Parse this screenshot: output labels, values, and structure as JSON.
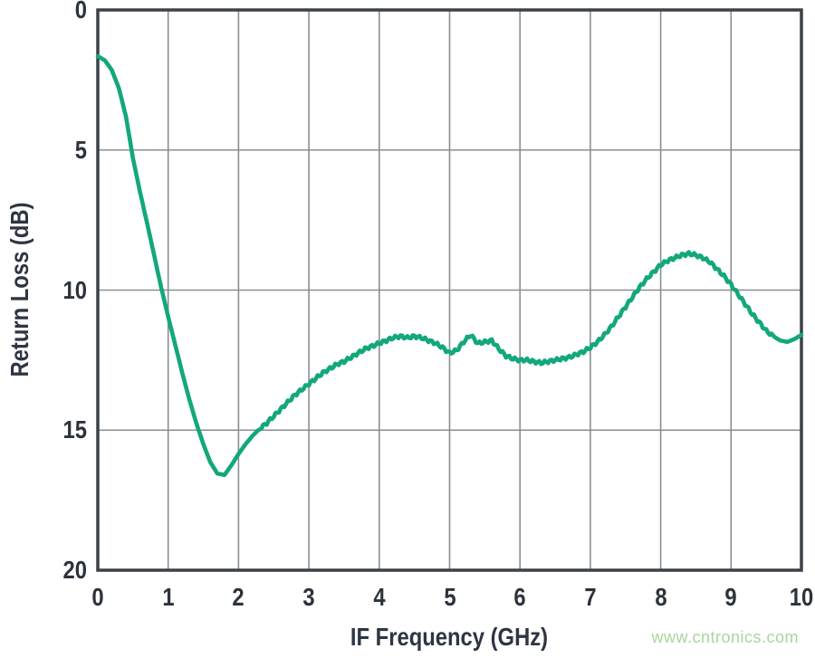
{
  "watermark": {
    "text": "www.cntronics.com",
    "color": "#a7d79d"
  },
  "style": {
    "background": "#ffffff",
    "grid_color": "#8b8e92",
    "frame_color": "#3c4149",
    "tick_text_color": "#2d333c",
    "title_text_color": "#2e3543",
    "curve_color": "#13a87c"
  },
  "chart_data": {
    "type": "line",
    "title": "",
    "xlabel": "IF Frequency (GHz)",
    "ylabel": "Return Loss (dB)",
    "xlim": [
      0,
      10
    ],
    "ylim": [
      0,
      20
    ],
    "y_axis_inverted_zero_at_top": true,
    "grid": true,
    "legend": "none",
    "xticks": [
      0,
      1,
      2,
      3,
      4,
      5,
      6,
      7,
      8,
      9,
      10
    ],
    "yticks": [
      0,
      5,
      10,
      15,
      20
    ],
    "series": [
      {
        "name": "Return Loss",
        "color": "#13a87c",
        "stroke_width": 4.6,
        "ripple": {
          "amplitude_db": 0.06,
          "wavelength_ghz": 0.085,
          "from_ghz": 2.3,
          "to_ghz": 9.6
        },
        "points": [
          [
            0,
            1.65
          ],
          [
            0.1,
            1.8
          ],
          [
            0.2,
            2.15
          ],
          [
            0.3,
            2.8
          ],
          [
            0.4,
            3.8
          ],
          [
            0.5,
            5.3
          ],
          [
            0.6,
            6.5
          ],
          [
            0.7,
            7.6
          ],
          [
            0.8,
            8.75
          ],
          [
            0.9,
            9.9
          ],
          [
            1,
            10.95
          ],
          [
            1.1,
            11.95
          ],
          [
            1.2,
            12.95
          ],
          [
            1.3,
            13.9
          ],
          [
            1.4,
            14.75
          ],
          [
            1.5,
            15.5
          ],
          [
            1.6,
            16.15
          ],
          [
            1.7,
            16.55
          ],
          [
            1.8,
            16.6
          ],
          [
            1.9,
            16.25
          ],
          [
            2,
            15.85
          ],
          [
            2.1,
            15.5
          ],
          [
            2.2,
            15.2
          ],
          [
            2.3,
            14.95
          ],
          [
            2.4,
            14.75
          ],
          [
            2.5,
            14.5
          ],
          [
            2.6,
            14.25
          ],
          [
            2.7,
            14
          ],
          [
            2.8,
            13.75
          ],
          [
            2.9,
            13.55
          ],
          [
            3,
            13.35
          ],
          [
            3.1,
            13.15
          ],
          [
            3.2,
            12.95
          ],
          [
            3.3,
            12.8
          ],
          [
            3.4,
            12.65
          ],
          [
            3.5,
            12.55
          ],
          [
            3.6,
            12.4
          ],
          [
            3.7,
            12.25
          ],
          [
            3.8,
            12.1
          ],
          [
            3.9,
            12
          ],
          [
            4,
            11.9
          ],
          [
            4.1,
            11.8
          ],
          [
            4.2,
            11.7
          ],
          [
            4.3,
            11.65
          ],
          [
            4.4,
            11.7
          ],
          [
            4.5,
            11.65
          ],
          [
            4.6,
            11.7
          ],
          [
            4.7,
            11.8
          ],
          [
            4.8,
            11.9
          ],
          [
            4.9,
            12.05
          ],
          [
            5,
            12.25
          ],
          [
            5.1,
            12.15
          ],
          [
            5.2,
            11.85
          ],
          [
            5.3,
            11.6
          ],
          [
            5.4,
            11.9
          ],
          [
            5.5,
            11.85
          ],
          [
            5.6,
            11.8
          ],
          [
            5.7,
            12.1
          ],
          [
            5.8,
            12.35
          ],
          [
            5.9,
            12.45
          ],
          [
            6,
            12.5
          ],
          [
            6.1,
            12.5
          ],
          [
            6.2,
            12.55
          ],
          [
            6.3,
            12.6
          ],
          [
            6.4,
            12.55
          ],
          [
            6.5,
            12.5
          ],
          [
            6.6,
            12.45
          ],
          [
            6.7,
            12.4
          ],
          [
            6.8,
            12.3
          ],
          [
            6.9,
            12.2
          ],
          [
            7,
            12.05
          ],
          [
            7.1,
            11.85
          ],
          [
            7.2,
            11.6
          ],
          [
            7.3,
            11.3
          ],
          [
            7.4,
            10.95
          ],
          [
            7.5,
            10.6
          ],
          [
            7.6,
            10.25
          ],
          [
            7.7,
            9.9
          ],
          [
            7.8,
            9.6
          ],
          [
            7.9,
            9.35
          ],
          [
            8,
            9.1
          ],
          [
            8.1,
            8.95
          ],
          [
            8.2,
            8.85
          ],
          [
            8.3,
            8.75
          ],
          [
            8.4,
            8.7
          ],
          [
            8.5,
            8.75
          ],
          [
            8.6,
            8.85
          ],
          [
            8.7,
            9
          ],
          [
            8.8,
            9.25
          ],
          [
            8.9,
            9.5
          ],
          [
            9,
            9.8
          ],
          [
            9.1,
            10.15
          ],
          [
            9.2,
            10.5
          ],
          [
            9.3,
            10.85
          ],
          [
            9.4,
            11.15
          ],
          [
            9.5,
            11.45
          ],
          [
            9.6,
            11.65
          ],
          [
            9.7,
            11.8
          ],
          [
            9.8,
            11.85
          ],
          [
            9.9,
            11.75
          ],
          [
            10,
            11.6
          ]
        ]
      }
    ]
  }
}
